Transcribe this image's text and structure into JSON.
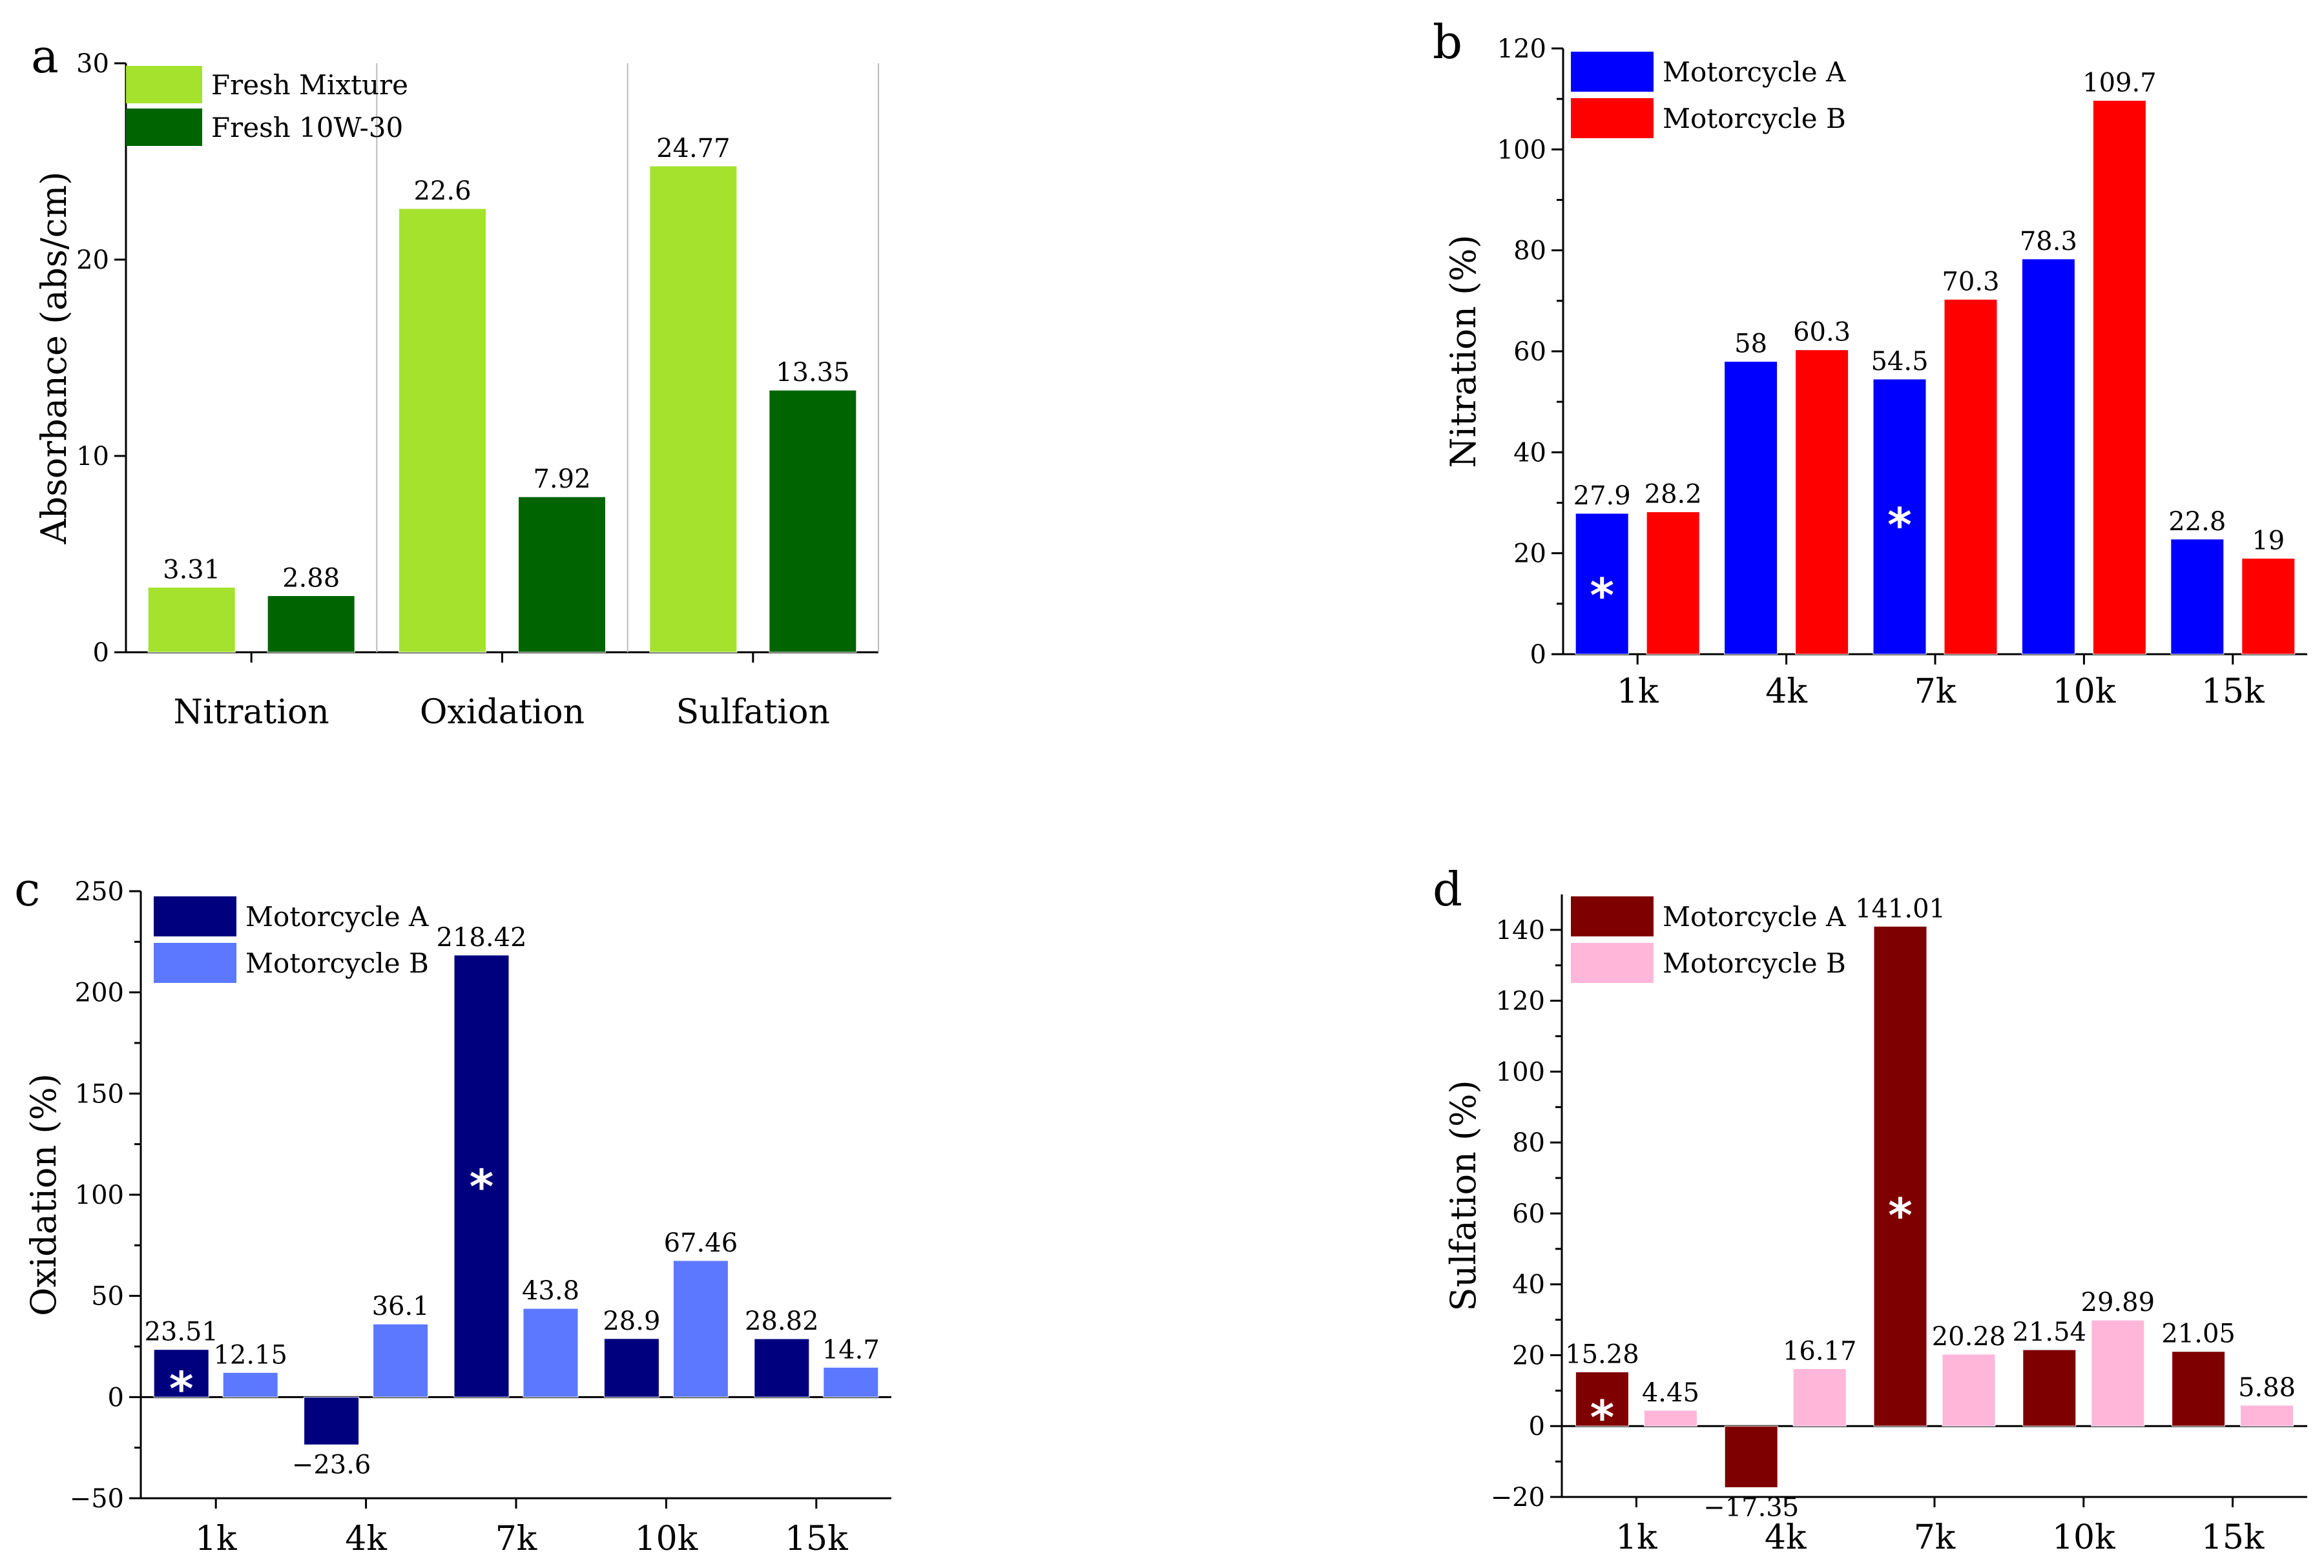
{
  "chart_data": [
    {
      "panel": "a",
      "type": "bar",
      "ylabel": "Absorbance (abs/cm)",
      "ylim": [
        0,
        30
      ],
      "yticks": [
        "0",
        "10",
        "20",
        "30"
      ],
      "categories": [
        "Nitration",
        "Oxidation",
        "Sulfation"
      ],
      "separators": true,
      "series": [
        {
          "name": "Fresh Mixture",
          "color": "#a5e22e",
          "values": [
            3.31,
            22.6,
            24.77
          ],
          "labels": [
            "3.31",
            "22.6",
            "24.77"
          ]
        },
        {
          "name": "Fresh 10W-30",
          "color": "#006400",
          "values": [
            2.88,
            7.92,
            13.35
          ],
          "labels": [
            "2.88",
            "7.92",
            "13.35"
          ]
        }
      ],
      "stars": []
    },
    {
      "panel": "b",
      "type": "bar",
      "ylabel": "Nitration (%)",
      "ylim": [
        0,
        120
      ],
      "yticks": [
        "0",
        "20",
        "40",
        "60",
        "80",
        "100",
        "120"
      ],
      "categories": [
        "1k",
        "4k",
        "7k",
        "10k",
        "15k"
      ],
      "series": [
        {
          "name": "Motorcycle A",
          "color": "#0000ff",
          "values": [
            27.9,
            58,
            54.5,
            78.3,
            22.8
          ],
          "labels": [
            "27.9",
            "58",
            "54.5",
            "78.3",
            "22.8"
          ]
        },
        {
          "name": "Motorcycle B",
          "color": "#ff0000",
          "values": [
            28.2,
            60.3,
            70.3,
            109.7,
            19
          ],
          "labels": [
            "28.2",
            "60.3",
            "70.3",
            "109.7",
            "19"
          ]
        }
      ],
      "stars": [
        {
          "category": 0,
          "series": 0,
          "value": 12,
          "symbol": "*"
        },
        {
          "category": 2,
          "series": 0,
          "value": 26,
          "symbol": "*"
        }
      ]
    },
    {
      "panel": "c",
      "type": "bar",
      "ylabel": "Oxidation (%)",
      "ylim": [
        -50,
        250
      ],
      "yticks": [
        "-50",
        "0",
        "50",
        "100",
        "150",
        "200",
        "250"
      ],
      "categories": [
        "1k",
        "4k",
        "7k",
        "10k",
        "15k"
      ],
      "series": [
        {
          "name": "Motorcycle A",
          "color": "#00007f",
          "values": [
            23.51,
            -23.6,
            218.42,
            28.9,
            28.82
          ],
          "labels": [
            "23.51",
            "−23.6",
            "218.42",
            "28.9",
            "28.82"
          ]
        },
        {
          "name": "Motorcycle B",
          "color": "#5b78ff",
          "values": [
            12.15,
            36.1,
            43.8,
            67.46,
            14.7
          ],
          "labels": [
            "12.15",
            "36.1",
            "43.8",
            "67.46",
            "14.7"
          ]
        }
      ],
      "stars": [
        {
          "category": 0,
          "series": 0,
          "value": 5,
          "symbol": "*"
        },
        {
          "category": 2,
          "series": 0,
          "value": 105,
          "symbol": "*"
        }
      ]
    },
    {
      "panel": "d",
      "type": "bar",
      "ylabel": "Sulfation (%)",
      "ylim": [
        -20,
        150
      ],
      "yticks": [
        "-20",
        "0",
        "20",
        "40",
        "60",
        "80",
        "100",
        "120",
        "140"
      ],
      "categories": [
        "1k",
        "4k",
        "7k",
        "10k",
        "15k"
      ],
      "series": [
        {
          "name": "Motorcycle A",
          "color": "#7f0000",
          "values": [
            15.28,
            -17.35,
            141.01,
            21.54,
            21.05
          ],
          "labels": [
            "15.28",
            "−17.35",
            "141.01",
            "21.54",
            "21.05"
          ]
        },
        {
          "name": "Motorcycle B",
          "color": "#ffb6d9",
          "values": [
            4.45,
            16.17,
            20.28,
            29.89,
            5.88
          ],
          "labels": [
            "4.45",
            "16.17",
            "20.28",
            "29.89",
            "5.88"
          ]
        }
      ],
      "stars": [
        {
          "category": 0,
          "series": 0,
          "value": 3,
          "symbol": "*"
        },
        {
          "category": 2,
          "series": 0,
          "value": 60,
          "symbol": "*"
        }
      ]
    }
  ]
}
